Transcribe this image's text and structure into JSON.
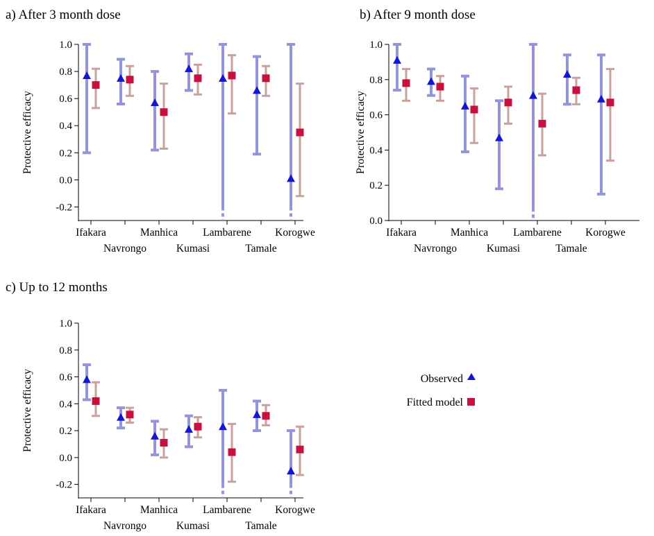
{
  "colors": {
    "observed_bar": "#9494d8",
    "observed_marker": "#1515d6",
    "fitted_bar": "#c8a09c",
    "fitted_marker": "#c8103e"
  },
  "legend": {
    "observed": "Observed",
    "fitted": "Fitted model"
  },
  "chart_data": [
    {
      "id": "a",
      "type": "scatter",
      "title": "a) After 3 month dose",
      "ylabel": "Protective efficacy",
      "ylim": [
        -0.3,
        1.0
      ],
      "yticks": [
        "1.0",
        "0.8",
        "0.6",
        "0.4",
        "0.2",
        "0.0",
        "-0.2"
      ],
      "categories": [
        "Ifakara",
        "Navrongo",
        "Manhica",
        "Kumasi",
        "Lambarene",
        "Tamale",
        "Korogwe"
      ],
      "series": [
        {
          "name": "Observed",
          "values": [
            0.77,
            0.75,
            0.57,
            0.82,
            0.75,
            0.66,
            0.01
          ],
          "lower": [
            0.2,
            0.56,
            0.22,
            0.66,
            -0.2,
            0.19,
            -0.2
          ],
          "upper": [
            1.0,
            0.89,
            0.8,
            0.93,
            1.0,
            0.91,
            1.0
          ],
          "lower_truncated": [
            false,
            false,
            false,
            false,
            true,
            false,
            true
          ]
        },
        {
          "name": "Fitted model",
          "values": [
            0.7,
            0.74,
            0.5,
            0.75,
            0.77,
            0.75,
            0.35
          ],
          "lower": [
            0.53,
            0.62,
            0.23,
            0.63,
            0.49,
            0.62,
            -0.12
          ],
          "upper": [
            0.82,
            0.84,
            0.71,
            0.85,
            0.92,
            0.84,
            0.71
          ]
        }
      ]
    },
    {
      "id": "b",
      "type": "scatter",
      "title": "b) After 9 month dose",
      "ylabel": "Protective efficacy",
      "ylim": [
        0.0,
        1.0
      ],
      "yticks": [
        "1.0",
        "0.8",
        "0.6",
        "0.4",
        "0.2",
        "0.0"
      ],
      "categories": [
        "Ifakara",
        "Navrongo",
        "Manhica",
        "Kumasi",
        "Lambarene",
        "Tamale",
        "Korogwe"
      ],
      "series": [
        {
          "name": "Observed",
          "values": [
            0.91,
            0.79,
            0.65,
            0.47,
            0.71,
            0.83,
            0.69
          ],
          "lower": [
            0.74,
            0.71,
            0.39,
            0.18,
            0.07,
            0.66,
            0.15
          ],
          "upper": [
            1.0,
            0.86,
            0.82,
            0.68,
            1.0,
            0.94,
            0.94
          ],
          "lower_truncated": [
            false,
            false,
            false,
            false,
            true,
            false,
            false
          ]
        },
        {
          "name": "Fitted model",
          "values": [
            0.78,
            0.76,
            0.63,
            0.67,
            0.55,
            0.74,
            0.67
          ],
          "lower": [
            0.68,
            0.68,
            0.44,
            0.55,
            0.37,
            0.66,
            0.34
          ],
          "upper": [
            0.86,
            0.82,
            0.75,
            0.76,
            0.72,
            0.81,
            0.86
          ]
        }
      ]
    },
    {
      "id": "c",
      "type": "scatter",
      "title": "c) Up to 12 months",
      "ylabel": "Protective efficacy",
      "ylim": [
        -0.3,
        1.0
      ],
      "yticks": [
        "1.0",
        "0.8",
        "0.6",
        "0.4",
        "0.2",
        "0.0",
        "-0.2"
      ],
      "categories": [
        "Ifakara",
        "Navrongo",
        "Manhica",
        "Kumasi",
        "Lambarene",
        "Tamale",
        "Korogwe"
      ],
      "series": [
        {
          "name": "Observed",
          "values": [
            0.58,
            0.3,
            0.16,
            0.21,
            0.23,
            0.32,
            -0.1
          ],
          "lower": [
            0.43,
            0.22,
            0.02,
            0.08,
            -0.2,
            0.2,
            -0.2
          ],
          "upper": [
            0.69,
            0.37,
            0.27,
            0.31,
            0.5,
            0.42,
            0.2
          ],
          "lower_truncated": [
            false,
            false,
            false,
            false,
            true,
            false,
            true
          ]
        },
        {
          "name": "Fitted model",
          "values": [
            0.42,
            0.32,
            0.11,
            0.23,
            0.04,
            0.31,
            0.06
          ],
          "lower": [
            0.31,
            0.26,
            0.0,
            0.15,
            -0.18,
            0.24,
            -0.13
          ],
          "upper": [
            0.56,
            0.37,
            0.21,
            0.3,
            0.25,
            0.39,
            0.23
          ]
        }
      ]
    }
  ]
}
